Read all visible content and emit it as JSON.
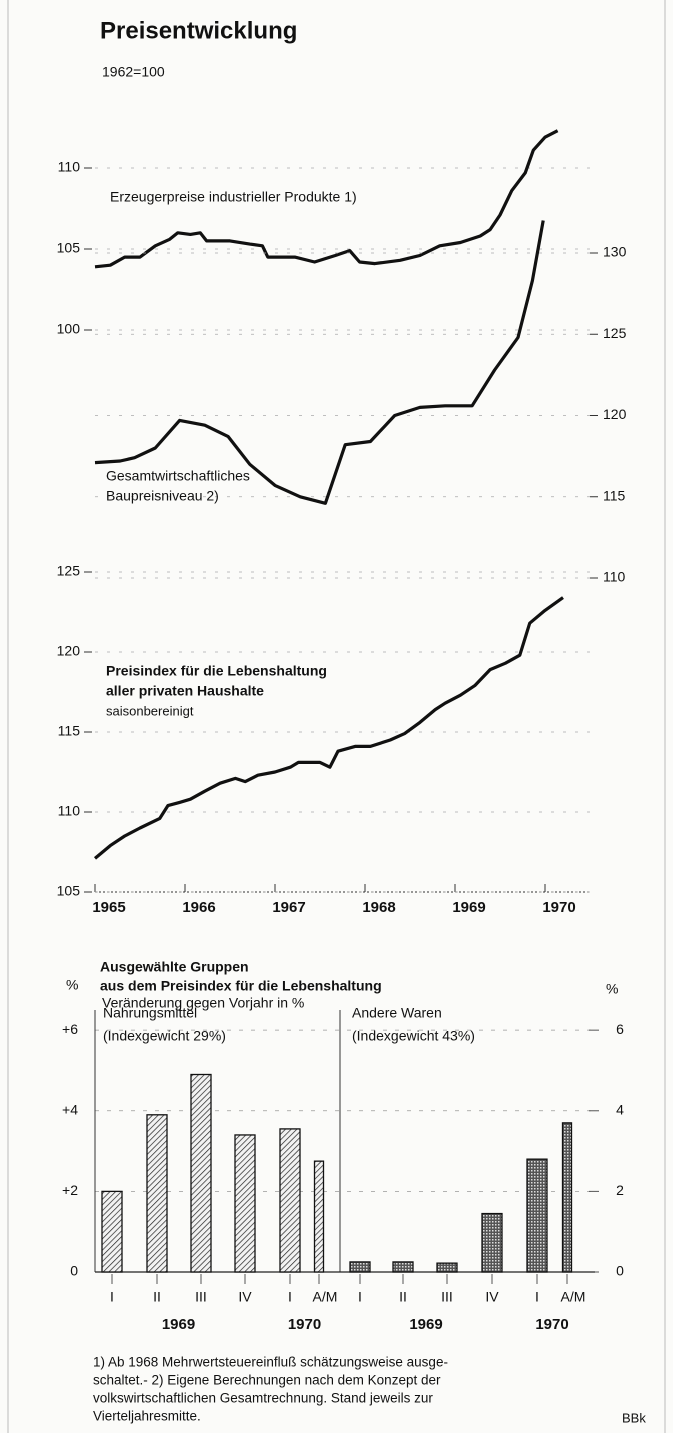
{
  "chart_data": [
    {
      "type": "line",
      "title": "Preisentwicklung",
      "subtitle": "1962=100",
      "xlim": [
        1965,
        1970.5
      ],
      "xticks": [
        1965,
        1966,
        1967,
        1968,
        1969,
        1970
      ],
      "series": [
        {
          "name": "Erzeugerpreise industrieller Produkte 1)",
          "label": [
            "Erzeugerpreise industrieller Produkte 1)"
          ],
          "color": "#111111",
          "ylim": [
            99,
            113
          ],
          "yticks": [
            100,
            105,
            110
          ],
          "x": [
            1965.0,
            1965.17,
            1965.33,
            1965.5,
            1965.67,
            1965.83,
            1965.92,
            1966.06,
            1966.17,
            1966.24,
            1966.5,
            1966.72,
            1966.86,
            1966.92,
            1967.22,
            1967.44,
            1967.67,
            1967.83,
            1967.94,
            1968.11,
            1968.39,
            1968.61,
            1968.83,
            1969.06,
            1969.28,
            1969.39,
            1969.5,
            1969.63,
            1969.78,
            1969.87,
            1970.0,
            1970.14
          ],
          "values": [
            103.9,
            104.0,
            104.5,
            104.5,
            105.2,
            105.6,
            106.0,
            105.9,
            106.0,
            105.5,
            105.5,
            105.3,
            105.2,
            104.5,
            104.5,
            104.2,
            104.6,
            104.9,
            104.2,
            104.1,
            104.3,
            104.6,
            105.2,
            105.4,
            105.8,
            106.2,
            107.1,
            108.6,
            109.7,
            111.1,
            111.9,
            112.3
          ]
        },
        {
          "name": "Gesamtwirtschaftliches Baupreisniveau 2)",
          "label": [
            "Gesamtwirtschaftliches",
            "Baupreisniveau 2)"
          ],
          "color": "#111111",
          "axis": "y2",
          "ylim": [
            108,
            133
          ],
          "yticks": [
            110,
            115,
            120,
            125,
            130
          ],
          "x": [
            1965.0,
            1965.28,
            1965.44,
            1965.67,
            1965.94,
            1966.22,
            1966.48,
            1966.72,
            1967.0,
            1967.28,
            1967.56,
            1967.78,
            1968.06,
            1968.33,
            1968.61,
            1968.89,
            1969.19,
            1969.44,
            1969.7,
            1969.86,
            1969.98
          ],
          "values": [
            117.1,
            117.2,
            117.4,
            118.0,
            119.7,
            119.4,
            118.7,
            117.0,
            115.7,
            115.0,
            114.6,
            118.2,
            118.4,
            120.0,
            120.5,
            120.6,
            120.6,
            122.8,
            124.8,
            128.3,
            132.0
          ]
        },
        {
          "name": "Preisindex für die Lebenshaltung aller privaten Haushalte",
          "label": [
            "Preisindex für die Lebenshaltung",
            "aller privaten Haushalte"
          ],
          "note": "saisonbereinigt",
          "color": "#111111",
          "ylim": [
            105,
            126
          ],
          "yticks": [
            105,
            110,
            115,
            120,
            125
          ],
          "x": [
            1965.0,
            1965.17,
            1965.33,
            1965.5,
            1965.72,
            1965.81,
            1965.94,
            1966.06,
            1966.22,
            1966.39,
            1966.56,
            1966.67,
            1966.81,
            1967.0,
            1967.17,
            1967.26,
            1967.5,
            1967.61,
            1967.7,
            1967.89,
            1968.06,
            1968.28,
            1968.44,
            1968.61,
            1968.78,
            1968.89,
            1969.06,
            1969.22,
            1969.39,
            1969.56,
            1969.72,
            1969.83,
            1970.0,
            1970.2
          ],
          "values": [
            107.1,
            107.9,
            108.5,
            109.0,
            109.6,
            110.4,
            110.6,
            110.8,
            111.3,
            111.8,
            112.1,
            111.9,
            112.3,
            112.5,
            112.8,
            113.1,
            113.1,
            112.8,
            113.8,
            114.1,
            114.1,
            114.5,
            114.9,
            115.6,
            116.4,
            116.8,
            117.3,
            117.9,
            118.9,
            119.3,
            119.8,
            121.8,
            122.6,
            123.4
          ]
        }
      ]
    },
    {
      "type": "bar",
      "title": [
        "Ausgewählte Gruppen",
        "aus dem Preisindex für die Lebenshaltung"
      ],
      "subtitle": "Veränderung gegen Vorjahr in %",
      "unit": "%",
      "ylim": [
        0,
        6.5
      ],
      "yticks": [
        {
          "value": 6,
          "label": "+6"
        },
        {
          "value": 4,
          "label": "+4"
        },
        {
          "value": 2,
          "label": "+2"
        },
        0
      ],
      "y2lim": [
        0,
        6.5
      ],
      "y2ticks": [
        6,
        4,
        2,
        0
      ],
      "groups": [
        "1969",
        "1970"
      ],
      "panels": [
        {
          "name": "Nahrungsmittel",
          "weight": "(Indexgewicht 29%)",
          "pattern": "hatch",
          "categories": [
            "I",
            "II",
            "III",
            "IV",
            "I",
            "A/M"
          ],
          "values": [
            2.0,
            3.9,
            4.9,
            3.4,
            3.55,
            2.75
          ]
        },
        {
          "name": "Andere Waren",
          "weight": "(Indexgewicht 43%)",
          "pattern": "cross",
          "categories": [
            "I",
            "II",
            "III",
            "IV",
            "I",
            "A/M"
          ],
          "values": [
            0.25,
            0.25,
            0.22,
            1.45,
            2.8,
            3.7
          ]
        }
      ]
    }
  ],
  "footnotes": [
    "1) Ab 1968 Mehrwertsteuereinfluß schätzungsweise ausge-",
    "schaltet.- 2) Eigene Berechnungen nach dem Konzept der",
    "volkswirtschaftlichen Gesamtrechnung. Stand jeweils zur",
    "Vierteljahresmitte."
  ],
  "source": "BBk"
}
